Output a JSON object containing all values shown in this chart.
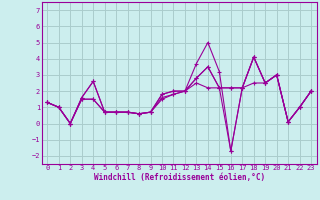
{
  "xlabel": "Windchill (Refroidissement éolien,°C)",
  "background_color": "#cceeee",
  "grid_color": "#aacccc",
  "line_color": "#990099",
  "xlim": [
    -0.5,
    23.5
  ],
  "ylim": [
    -2.5,
    7.5
  ],
  "yticks": [
    -2,
    -1,
    0,
    1,
    2,
    3,
    4,
    5,
    6,
    7
  ],
  "xticks": [
    0,
    1,
    2,
    3,
    4,
    5,
    6,
    7,
    8,
    9,
    10,
    11,
    12,
    13,
    14,
    15,
    16,
    17,
    18,
    19,
    20,
    21,
    22,
    23
  ],
  "series": [
    [
      1.3,
      1.0,
      0.0,
      1.6,
      2.6,
      0.7,
      0.7,
      0.7,
      0.6,
      0.7,
      1.8,
      2.0,
      2.0,
      3.7,
      5.0,
      3.2,
      -1.7,
      2.2,
      4.1,
      2.5,
      3.0,
      0.1,
      1.0,
      2.0
    ],
    [
      1.3,
      1.0,
      0.0,
      1.6,
      2.6,
      0.7,
      0.7,
      0.7,
      0.6,
      0.7,
      1.8,
      2.0,
      2.0,
      2.8,
      3.5,
      2.2,
      -1.7,
      2.2,
      4.1,
      2.5,
      3.0,
      0.1,
      1.0,
      2.0
    ],
    [
      1.3,
      1.0,
      0.0,
      1.5,
      1.5,
      0.7,
      0.7,
      0.7,
      0.6,
      0.7,
      1.6,
      1.8,
      2.0,
      2.8,
      3.5,
      2.2,
      2.2,
      2.2,
      4.1,
      2.5,
      3.0,
      0.1,
      1.0,
      2.0
    ],
    [
      1.3,
      1.0,
      0.0,
      1.5,
      1.5,
      0.7,
      0.7,
      0.7,
      0.6,
      0.7,
      1.5,
      1.8,
      2.0,
      2.5,
      2.2,
      2.2,
      2.2,
      2.2,
      2.5,
      2.5,
      3.0,
      0.1,
      1.0,
      2.0
    ]
  ],
  "tick_fontsize": 5.0,
  "xlabel_fontsize": 5.5
}
